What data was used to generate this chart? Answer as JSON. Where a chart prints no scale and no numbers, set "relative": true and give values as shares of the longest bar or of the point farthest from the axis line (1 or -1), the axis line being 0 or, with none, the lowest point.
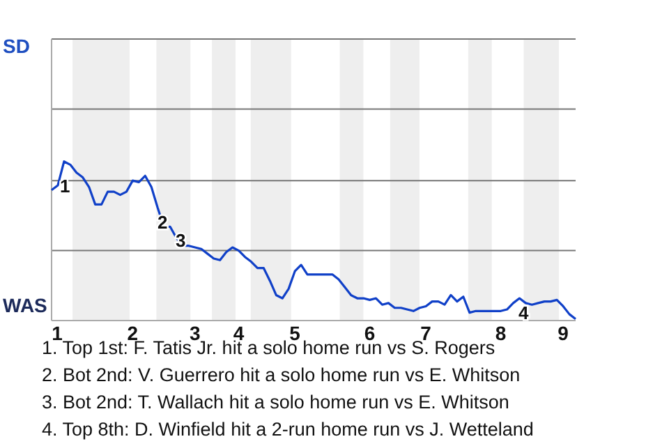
{
  "chart_data": {
    "type": "line",
    "relative": true,
    "categories": [
      "1",
      null,
      null,
      null,
      null,
      null,
      null,
      null,
      null,
      null,
      null,
      null,
      null,
      "2",
      null,
      null,
      null,
      null,
      null,
      null,
      null,
      null,
      null,
      "3",
      null,
      null,
      null,
      null,
      null,
      null,
      "4",
      null,
      null,
      null,
      null,
      null,
      null,
      null,
      null,
      "5",
      null,
      null,
      null,
      null,
      null,
      null,
      null,
      null,
      null,
      null,
      null,
      "6",
      null,
      null,
      null,
      null,
      null,
      null,
      null,
      null,
      "7",
      null,
      null,
      null,
      null,
      null,
      null,
      null,
      null,
      null,
      null,
      null,
      "8",
      null,
      null,
      null,
      null,
      null,
      null,
      null,
      null,
      null,
      "9",
      null,
      null
    ],
    "marker": "none",
    "line_style": "solid",
    "ref_lines": [
      {
        "axis": "y",
        "value": 0.44,
        "color": "#777777"
      },
      {
        "axis": "y",
        "value": 0.88,
        "color": "#777777"
      },
      {
        "axis": "y",
        "value": 1.33,
        "color": "#777777"
      },
      {
        "axis": "y",
        "value": 1.77,
        "color": "#777777"
      }
    ],
    "series": [
      {
        "color": "#1040c8",
        "values": [
          0.82,
          0.85,
          1,
          0.98,
          0.93,
          0.9,
          0.84,
          0.73,
          0.73,
          0.81,
          0.81,
          0.79,
          0.81,
          0.88,
          0.87,
          0.91,
          0.84,
          0.71,
          0.59,
          0.59,
          0.52,
          0.47,
          0.47,
          0.46,
          0.45,
          0.42,
          0.39,
          0.38,
          0.43,
          0.46,
          0.44,
          0.4,
          0.37,
          0.33,
          0.33,
          0.25,
          0.16,
          0.14,
          0.2,
          0.31,
          0.35,
          0.29,
          0.29,
          0.29,
          0.29,
          0.29,
          0.26,
          0.21,
          0.16,
          0.14,
          0.14,
          0.13,
          0.14,
          0.1,
          0.11,
          0.08,
          0.08,
          0.07,
          0.06,
          0.08,
          0.09,
          0.12,
          0.12,
          0.1,
          0.16,
          0.12,
          0.15,
          0.05,
          0.06,
          0.06,
          0.06,
          0.06,
          0.06,
          0.07,
          0.11,
          0.14,
          0.11,
          0.1,
          0.11,
          0.12,
          0.12,
          0.13,
          0.09,
          0.04,
          0.01
        ]
      }
    ],
    "annotations": [
      "SD",
      "WAS",
      "1",
      "2",
      "3",
      "4",
      "1. Top 1st: F. Tatis Jr. hit a solo home run vs S. Rogers",
      "2. Bot 2nd: V. Guerrero hit a solo home run vs E. Whitson",
      "3. Bot 2nd: T. Wallach hit a solo home run vs E. Whitson",
      "4. Top 8th: D. Winfield hit a 2-run home run vs J. Wetteland"
    ]
  }
}
